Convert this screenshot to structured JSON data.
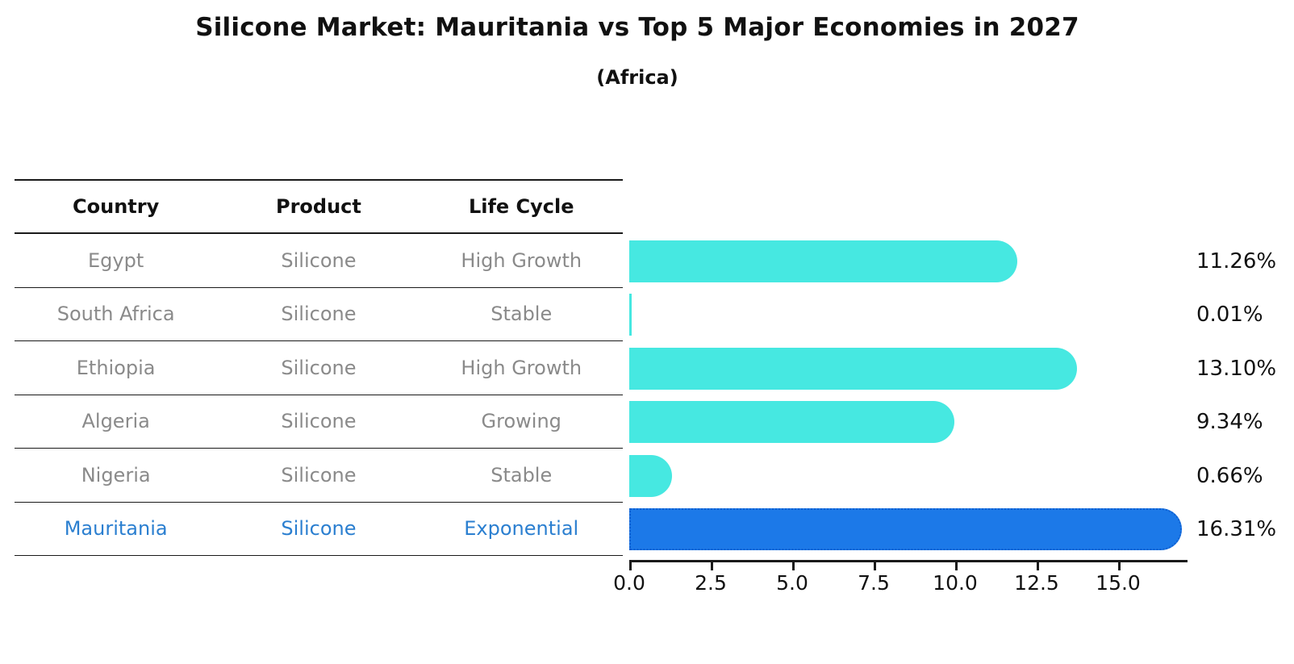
{
  "title": "Silicone Market: Mauritania vs Top 5 Major Economies in 2027",
  "subtitle": "(Africa)",
  "table": {
    "headers": [
      "Country",
      "Product",
      "Life Cycle"
    ],
    "rows": [
      {
        "country": "Egypt",
        "product": "Silicone",
        "life_cycle": "High Growth",
        "highlight": false
      },
      {
        "country": "South Africa",
        "product": "Silicone",
        "life_cycle": "Stable",
        "highlight": false
      },
      {
        "country": "Ethiopia",
        "product": "Silicone",
        "life_cycle": "High Growth",
        "highlight": false
      },
      {
        "country": "Algeria",
        "product": "Silicone",
        "life_cycle": "Growing",
        "highlight": false
      },
      {
        "country": "Nigeria",
        "product": "Silicone",
        "life_cycle": "Stable",
        "highlight": false
      },
      {
        "country": "Mauritania",
        "product": "Silicone",
        "life_cycle": "Exponential",
        "highlight": true
      }
    ]
  },
  "chart_data": {
    "type": "bar",
    "orientation": "horizontal",
    "title": "Silicone Market: Mauritania vs Top 5 Major Economies in 2027",
    "subtitle": "(Africa)",
    "categories": [
      "Egypt",
      "South Africa",
      "Ethiopia",
      "Algeria",
      "Nigeria",
      "Mauritania"
    ],
    "values": [
      11.26,
      0.01,
      13.1,
      9.34,
      0.66,
      16.31
    ],
    "value_labels": [
      "11.26%",
      "0.01%",
      "13.10%",
      "9.34%",
      "0.66%",
      "16.31%"
    ],
    "highlight_index": 5,
    "x_ticks": [
      "0.0",
      "2.5",
      "5.0",
      "7.5",
      "10.0",
      "12.5",
      "15.0"
    ],
    "xlim": [
      0,
      17.1
    ],
    "grid": false,
    "legend": "none",
    "xlabel": "",
    "ylabel": ""
  },
  "colors": {
    "bar": "#46e8e1",
    "highlight_bar": "#1c79e8",
    "highlight_bar_edge": "#0f5fd0",
    "highlight_text": "#2b7fd0",
    "text": "#111111",
    "muted_text": "#8a8a8a"
  }
}
